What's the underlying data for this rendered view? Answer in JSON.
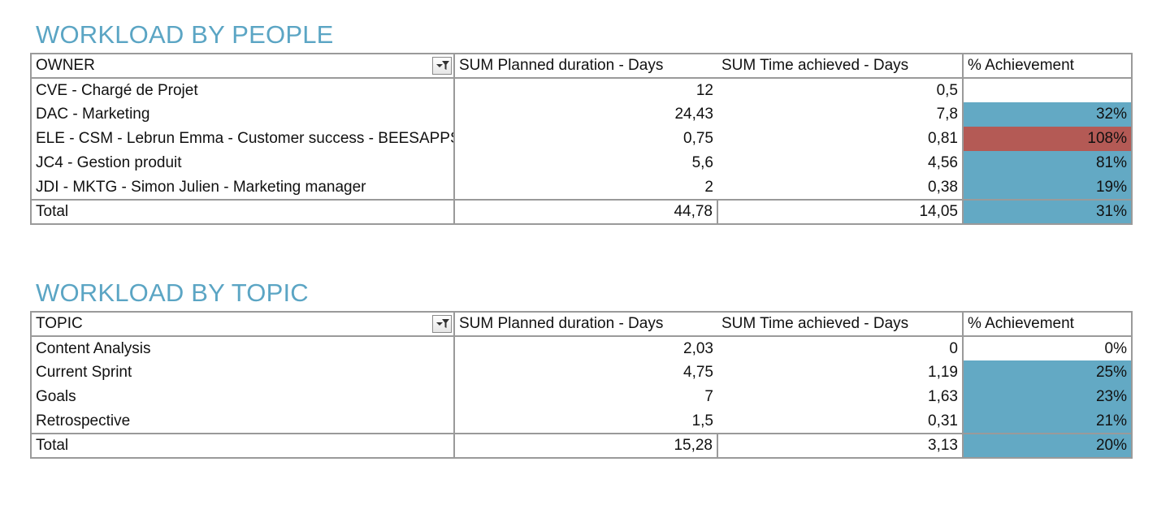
{
  "people": {
    "title": "WORKLOAD BY PEOPLE",
    "headers": [
      "OWNER",
      "SUM  Planned duration - Days",
      "SUM Time achieved - Days",
      "% Achievement"
    ],
    "rows": [
      {
        "label": "CVE - Chargé de Projet",
        "planned": "12",
        "achieved": "0,5",
        "pct": "",
        "fill": "none"
      },
      {
        "label": "DAC - Marketing",
        "planned": "24,43",
        "achieved": "7,8",
        "pct": "32%",
        "fill": "blue"
      },
      {
        "label": "ELE - CSM - Lebrun Emma - Customer success - BEESAPPS",
        "planned": "0,75",
        "achieved": "0,81",
        "pct": "108%",
        "fill": "red"
      },
      {
        "label": "JC4 - Gestion produit",
        "planned": "5,6",
        "achieved": "4,56",
        "pct": "81%",
        "fill": "blue"
      },
      {
        "label": "JDI - MKTG - Simon Julien - Marketing manager",
        "planned": "2",
        "achieved": "0,38",
        "pct": "19%",
        "fill": "blue"
      }
    ],
    "total": {
      "label": "Total",
      "planned": "44,78",
      "achieved": "14,05",
      "pct": "31%",
      "fill": "blue"
    }
  },
  "topic": {
    "title": "WORKLOAD BY TOPIC",
    "headers": [
      "TOPIC",
      "SUM  Planned duration - Days",
      "SUM Time achieved - Days",
      "% Achievement"
    ],
    "rows": [
      {
        "label": "Content Analysis",
        "planned": "2,03",
        "achieved": "0",
        "pct": "0%",
        "fill": "none"
      },
      {
        "label": "Current Sprint",
        "planned": "4,75",
        "achieved": "1,19",
        "pct": "25%",
        "fill": "blue"
      },
      {
        "label": "Goals",
        "planned": "7",
        "achieved": "1,63",
        "pct": "23%",
        "fill": "blue"
      },
      {
        "label": "Retrospective",
        "planned": "1,5",
        "achieved": "0,31",
        "pct": "21%",
        "fill": "blue"
      }
    ],
    "total": {
      "label": "Total",
      "planned": "15,28",
      "achieved": "3,13",
      "pct": "20%",
      "fill": "blue"
    }
  },
  "colors": {
    "title": "#5ba5c4",
    "fill_blue": "#63a9c4",
    "fill_red": "#b45a55",
    "grid": "#9a9a9a"
  },
  "icons": {
    "filter": "filter-dropdown-icon"
  }
}
